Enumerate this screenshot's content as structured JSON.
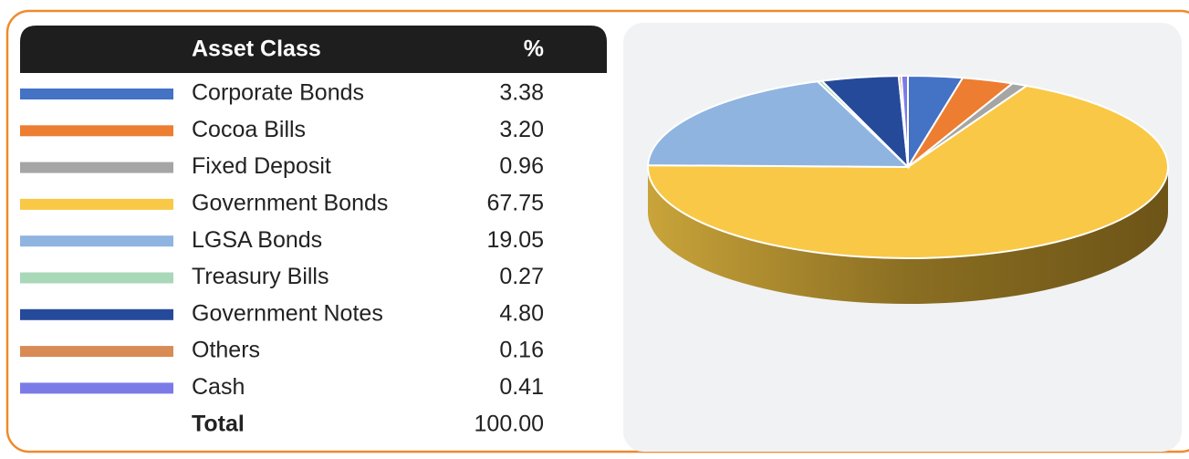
{
  "chart_data": {
    "type": "pie",
    "header": [
      "Asset Class",
      "%"
    ],
    "categories": [
      "Corporate Bonds",
      "Cocoa Bills",
      "Fixed Deposit",
      "Government Bonds",
      "LGSA Bonds",
      "Treasury Bills",
      "Government Notes",
      "Others",
      "Cash"
    ],
    "values": [
      3.38,
      3.2,
      0.96,
      67.75,
      19.05,
      0.27,
      4.8,
      0.16,
      0.41
    ],
    "value_labels": [
      "3.38",
      "3.20",
      "0.96",
      "67.75",
      "19.05",
      "0.27",
      "4.80",
      "0.16",
      "0.41"
    ],
    "colors": [
      "#4472c4",
      "#ed7d31",
      "#a5a5a5",
      "#f9c846",
      "#8fb4e0",
      "#a9d8b8",
      "#264a9a",
      "#d98b56",
      "#7b7be8"
    ],
    "total_name": "Total",
    "total": 100,
    "total_value_label": "100.00"
  }
}
